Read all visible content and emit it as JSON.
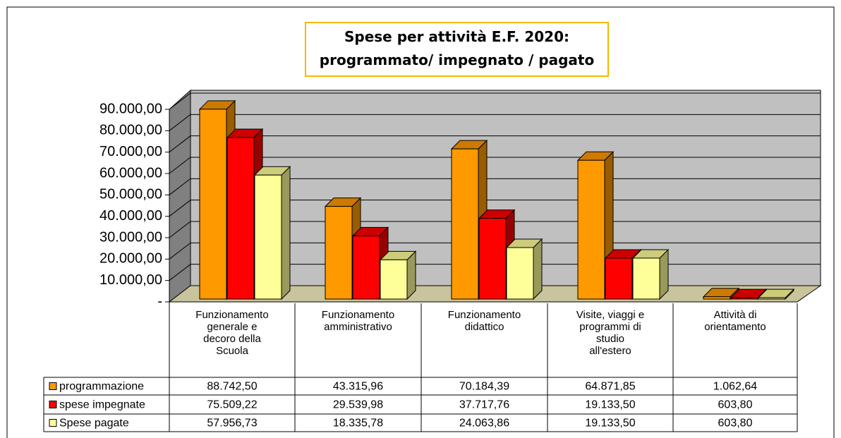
{
  "chart_data": {
    "type": "bar3d",
    "title": "Spese per attività E.F. 2020:\nprogrammato/ impegnato / pagato",
    "categories": [
      "Funzionamento\ngenerale e\ndecoro della\nScuola",
      "Funzionamento\namministrativo",
      "Funzionamento\ndidattico",
      "Visite, viaggi e\nprogrammi di\nstudio\nall'estero",
      "Attività di\norientamento"
    ],
    "series": [
      {
        "name": "programmazione",
        "color": "#ff9900",
        "values": [
          88742.5,
          43315.96,
          70184.39,
          64871.85,
          1062.64
        ],
        "value_labels": [
          "88.742,50",
          "43.315,96",
          "70.184,39",
          "64.871,85",
          "1.062,64"
        ]
      },
      {
        "name": "spese impegnate",
        "color": "#ff0000",
        "values": [
          75509.22,
          29539.98,
          37717.76,
          19133.5,
          603.8
        ],
        "value_labels": [
          "75.509,22",
          "29.539,98",
          "37.717,76",
          "19.133,50",
          "603,80"
        ]
      },
      {
        "name": "Spese pagate",
        "color": "#ffff99",
        "values": [
          57956.73,
          18335.78,
          24063.86,
          19133.5,
          603.8
        ],
        "value_labels": [
          "57.956,73",
          "18.335,78",
          "24.063,86",
          "19.133,50",
          "603,80"
        ]
      }
    ],
    "ylim": [
      0,
      90000
    ],
    "yticks": [
      {
        "value": 0,
        "label": "-"
      },
      {
        "value": 10000,
        "label": "10.000,00"
      },
      {
        "value": 20000,
        "label": "20.000,00"
      },
      {
        "value": 30000,
        "label": "30.000,00"
      },
      {
        "value": 40000,
        "label": "40.000,00"
      },
      {
        "value": 50000,
        "label": "50.000,00"
      },
      {
        "value": 60000,
        "label": "60.000,00"
      },
      {
        "value": 70000,
        "label": "70.000,00"
      },
      {
        "value": 80000,
        "label": "80.000,00"
      },
      {
        "value": 90000,
        "label": "90.000,00"
      }
    ],
    "grid": true
  }
}
